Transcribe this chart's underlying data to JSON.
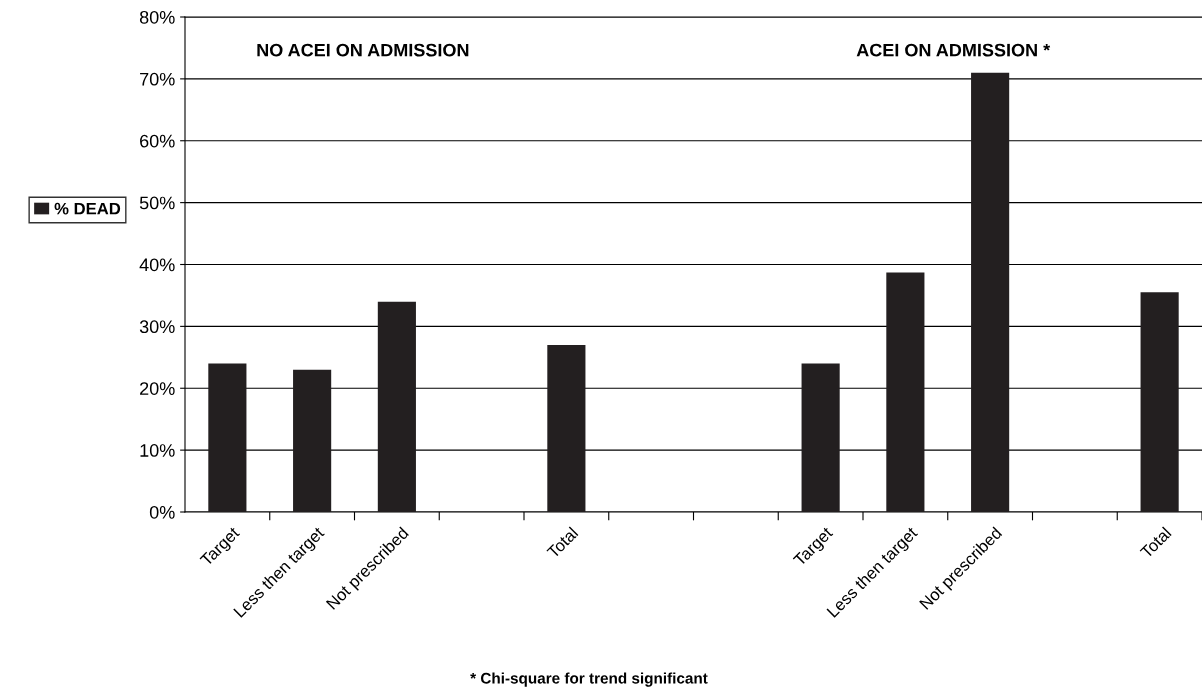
{
  "chart_data": {
    "type": "bar",
    "categories": [
      "Target",
      "Less then target",
      "Not prescribed",
      null,
      "Total",
      null,
      null,
      "Target",
      "Less then target",
      "Not prescribed",
      null,
      "Total"
    ],
    "series": [
      {
        "name": "% DEAD",
        "color": "#231f20",
        "values": [
          24,
          23,
          34,
          null,
          27,
          null,
          null,
          24,
          38.7,
          71,
          null,
          35.5
        ]
      }
    ],
    "ylim": [
      0,
      80
    ],
    "yticks": [
      {
        "value": 0,
        "label": "0%"
      },
      {
        "value": 10,
        "label": "10%"
      },
      {
        "value": 20,
        "label": "20%"
      },
      {
        "value": 30,
        "label": "30%"
      },
      {
        "value": 40,
        "label": "40%"
      },
      {
        "value": 50,
        "label": "50%"
      },
      {
        "value": 60,
        "label": "60%"
      },
      {
        "value": 70,
        "label": "70%"
      },
      {
        "value": 80,
        "label": "80%"
      }
    ],
    "grid": "y",
    "legend": "left",
    "annotations": [
      "NO ACEI ON ADMISSION",
      "ACEI ON ADMISSION *",
      "* Chi-square for trend significant"
    ]
  }
}
